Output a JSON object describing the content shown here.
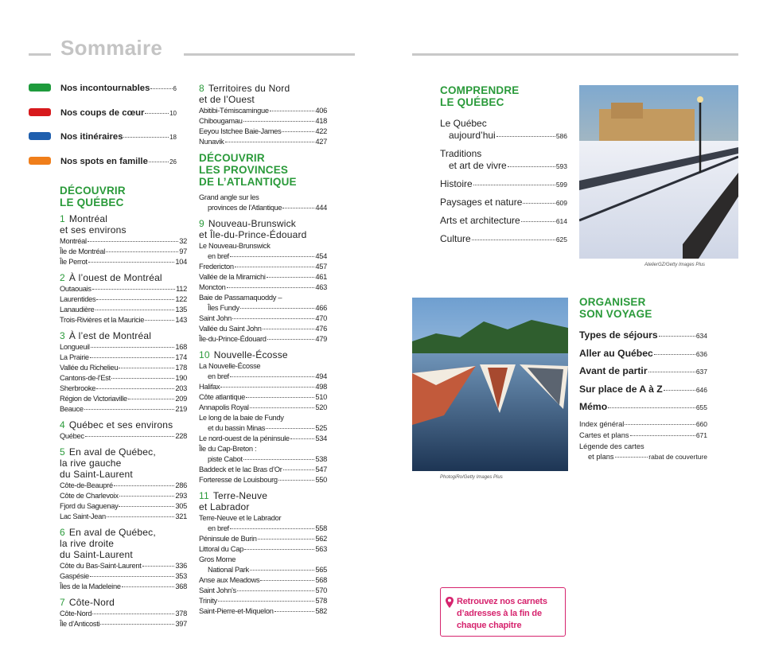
{
  "header": {
    "title": "Sommaire"
  },
  "legend": [
    {
      "label": "Nos incontournables",
      "page": 6,
      "color": "#1e9b3c"
    },
    {
      "label": "Nos coups de cœur",
      "page": 10,
      "color": "#d7191c"
    },
    {
      "label": "Nos itinéraires",
      "page": 18,
      "color": "#1f5fae"
    },
    {
      "label": "Nos spots en famille",
      "page": 26,
      "color": "#f07e1a"
    }
  ],
  "columns": [
    [
      {
        "heading": [
          "DÉCOUVRIR",
          "LE QUÉBEC"
        ]
      },
      {
        "number": 1,
        "title": [
          "Montréal",
          "et ses environs"
        ],
        "entries": [
          {
            "label": "Montréal",
            "page": 32
          },
          {
            "label": "Île de Montréal",
            "page": 97
          },
          {
            "label": "Île Perrot",
            "page": 104
          }
        ]
      },
      {
        "number": 2,
        "title": [
          "À l’ouest de Montréal"
        ],
        "entries": [
          {
            "label": "Outaouais",
            "page": 112
          },
          {
            "label": "Laurentides",
            "page": 122
          },
          {
            "label": "Lanaudière",
            "page": 135
          },
          {
            "label": "Trois-Rivières et la Mauricie",
            "page": 143
          }
        ]
      },
      {
        "number": 3,
        "title": [
          "À l’est de Montréal"
        ],
        "entries": [
          {
            "label": "Longueuil",
            "page": 168
          },
          {
            "label": "La Prairie",
            "page": 174
          },
          {
            "label": "Vallée du Richelieu",
            "page": 178
          },
          {
            "label": "Cantons-de-l’Est",
            "page": 190
          },
          {
            "label": "Sherbrooke",
            "page": 203
          },
          {
            "label": "Région de Victoriaville",
            "page": 209
          },
          {
            "label": "Beauce",
            "page": 219
          }
        ]
      },
      {
        "number": 4,
        "title": [
          "Québec et ses environs"
        ],
        "entries": [
          {
            "label": "Québec",
            "page": 228
          }
        ]
      },
      {
        "number": 5,
        "title": [
          "En aval de Québec,",
          "la rive gauche",
          "du Saint-Laurent"
        ],
        "entries": [
          {
            "label": "Côte-de-Beaupré",
            "page": 286
          },
          {
            "label": "Côte de Charlevoix",
            "page": 293
          },
          {
            "label": "Fjord du Saguenay",
            "page": 305
          },
          {
            "label": "Lac Saint-Jean",
            "page": 321
          }
        ]
      },
      {
        "number": 6,
        "title": [
          "En aval de Québec,",
          "la rive droite",
          "du Saint-Laurent"
        ],
        "entries": [
          {
            "label": "Côte du Bas-Saint-Laurent",
            "page": 336
          },
          {
            "label": "Gaspésie",
            "page": 353
          },
          {
            "label": "Îles de la Madeleine",
            "page": 368
          }
        ]
      },
      {
        "number": 7,
        "title": [
          "Côte-Nord"
        ],
        "entries": [
          {
            "label": "Côte-Nord",
            "page": 378
          },
          {
            "label": "Île d’Anticosti",
            "page": 397
          }
        ]
      }
    ],
    [
      {
        "number": 8,
        "title": [
          "Territoires du Nord",
          "et de l’Ouest"
        ],
        "entries": [
          {
            "label": "Abitibi-Témiscamingue",
            "page": 406
          },
          {
            "label": "Chibougamau",
            "page": 418
          },
          {
            "label": "Eeyou Istchee Baie-James",
            "page": 422
          },
          {
            "label": "Nunavik",
            "page": 427
          }
        ]
      },
      {
        "heading": [
          "DÉCOUVRIR",
          "LES PROVINCES",
          "DE L’ATLANTIQUE"
        ]
      },
      {
        "entries": [
          {
            "label": "Grand angle sur les",
            "label_continued": "provinces de l’Atlantique",
            "page": 444
          }
        ]
      },
      {
        "number": 9,
        "title": [
          "Nouveau-Brunswick",
          "et Île-du-Prince-Édouard"
        ],
        "entries": [
          {
            "label": "Le Nouveau-Brunswick",
            "label_continued": "en bref",
            "page": 454
          },
          {
            "label": "Fredericton",
            "page": 457
          },
          {
            "label": "Vallée de la Miramichi",
            "page": 461
          },
          {
            "label": "Moncton",
            "page": 463
          },
          {
            "label": "Baie de Passamaquoddy –",
            "label_continued": "Îles Fundy",
            "page": 466
          },
          {
            "label": "Saint John",
            "page": 470
          },
          {
            "label": "Vallée du Saint John",
            "page": 476
          },
          {
            "label": "Île-du-Prince-Édouard",
            "page": 479
          }
        ]
      },
      {
        "number": 10,
        "title": [
          "Nouvelle-Écosse"
        ],
        "entries": [
          {
            "label": "La Nouvelle-Écosse",
            "label_continued": "en bref",
            "page": 494
          },
          {
            "label": "Halifax",
            "page": 498
          },
          {
            "label": "Côte atlantique",
            "page": 510
          },
          {
            "label": "Annapolis Royal",
            "page": 520
          },
          {
            "label": "Le long de la baie de Fundy",
            "label_continued": "et du bassin Minas",
            "page": 525
          },
          {
            "label": "Le nord-ouest de la péninsule",
            "page": 534
          },
          {
            "label": "Île du Cap-Breton :",
            "label_continued": "piste Cabot",
            "page": 538
          },
          {
            "label": "Baddeck et le lac Bras d’Or",
            "page": 547
          },
          {
            "label": "Forteresse de Louisbourg",
            "page": 550
          }
        ]
      },
      {
        "number": 11,
        "title": [
          "Terre-Neuve",
          "et Labrador"
        ],
        "entries": [
          {
            "label": "Terre-Neuve et le Labrador",
            "label_continued": "en bref",
            "page": 558
          },
          {
            "label": "Péninsule de Burin",
            "page": 562
          },
          {
            "label": "Littoral du Cap",
            "page": 563
          },
          {
            "label": "Gros Morne",
            "label_continued": "National Park",
            "page": 565
          },
          {
            "label": "Anse aux Meadows",
            "page": 568
          },
          {
            "label": "Saint John’s",
            "page": 570
          },
          {
            "label": "Trinity",
            "page": 578
          },
          {
            "label": "Saint-Pierre-et-Miquelon",
            "page": 582
          }
        ]
      }
    ]
  ],
  "comprendre": {
    "heading": [
      "COMPRENDRE",
      "LE QUÉBEC"
    ],
    "entries": [
      {
        "label": "Le Québec",
        "label_continued": "aujourd’hui",
        "page": 586
      },
      {
        "label": "Traditions",
        "label_continued": "et art de vivre",
        "page": 593
      },
      {
        "label": "Histoire",
        "page": 599
      },
      {
        "label": "Paysages et nature",
        "page": 609
      },
      {
        "label": "Arts et architecture",
        "page": 614
      },
      {
        "label": "Culture",
        "page": 625
      }
    ]
  },
  "organiser": {
    "heading": [
      "ORGANISER",
      "SON VOYAGE"
    ],
    "entries": [
      {
        "label": "Types de séjours",
        "page": 634
      },
      {
        "label": "Aller au Québec",
        "page": 636
      },
      {
        "label": "Avant de partir",
        "page": 637
      },
      {
        "label": "Sur place de A à Z",
        "page": 646
      },
      {
        "label": "Mémo",
        "page": 655
      }
    ],
    "minor_entries": [
      {
        "label": "Index général",
        "page": 660
      },
      {
        "label": "Cartes et plans",
        "page": 671
      },
      {
        "label": "Légende des cartes",
        "label_continued": "et plans",
        "page": "rabat de couverture"
      }
    ]
  },
  "credits": [
    "AtelierGZ/Getty Images Plus",
    "PhotogiRo/Getty Images Plus"
  ],
  "callout": {
    "lines": [
      "Retrouvez nos carnets",
      "d’adresses à la fin de",
      "chaque chapitre"
    ]
  }
}
